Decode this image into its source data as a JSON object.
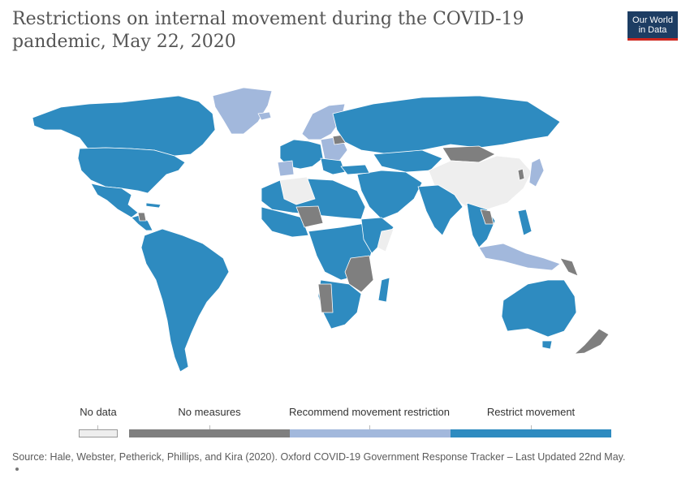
{
  "title": "Restrictions on internal movement during the COVID-19 pandemic, May 22, 2020",
  "logo": {
    "line1": "Our World",
    "line2": "in Data"
  },
  "legend": {
    "items": [
      {
        "label": "No data",
        "color": "#eeeeee"
      },
      {
        "label": "No measures",
        "color": "#7f7f7f"
      },
      {
        "label": "Recommend movement restriction",
        "color": "#a2b8dc"
      },
      {
        "label": "Restrict movement",
        "color": "#2e8bc0"
      }
    ]
  },
  "colors": {
    "no_data": "#eeeeee",
    "no_measures": "#7f7f7f",
    "recommend": "#a2b8dc",
    "restrict": "#2e8bc0",
    "border": "#ffffff"
  },
  "source": "Source: Hale, Webster, Petherick, Phillips, and Kira (2020). Oxford COVID-19 Government Response Tracker – Last Updated 22nd May."
}
